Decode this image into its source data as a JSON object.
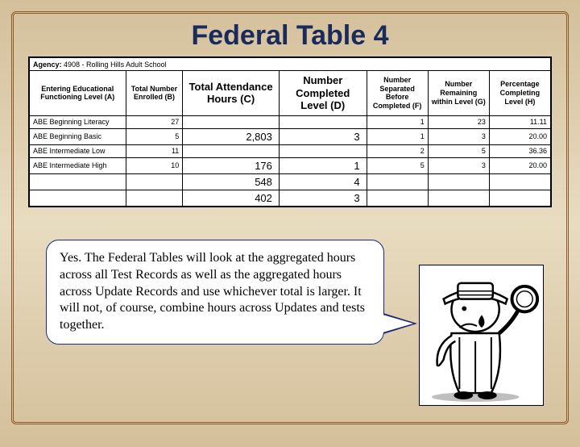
{
  "title": "Federal Table 4",
  "agency_label": "Agency:",
  "agency_value": "4908 - Rolling Hills Adult School",
  "columns": [
    "Entering Educational Functioning Level (A)",
    "Total Number Enrolled (B)",
    "Total Attendance Hours (C)",
    "Number Completed Level (D)",
    "Number Separated Before Completed (F)",
    "Number Remaining within Level (G)",
    "Percentage Completing Level (H)"
  ],
  "rows": [
    {
      "level": "ABE Beginning Literacy",
      "b": "27",
      "c": "",
      "d": "",
      "f": "1",
      "g": "23",
      "h": "11.11"
    },
    {
      "level": "ABE Beginning Basic",
      "b": "5",
      "c": "2,803",
      "d": "3",
      "f": "1",
      "g": "3",
      "h": "20.00"
    },
    {
      "level": "ABE Intermediate Low",
      "b": "11",
      "c": "",
      "d": "",
      "f": "2",
      "g": "5",
      "h": "36.36"
    },
    {
      "level": "ABE Intermediate High",
      "b": "10",
      "c": "176",
      "d": "1",
      "f": "5",
      "g": "3",
      "h": "20.00"
    },
    {
      "level": "",
      "b": "",
      "c": "548",
      "d": "4",
      "f": "",
      "g": "",
      "h": ""
    },
    {
      "level": "",
      "b": "",
      "c": "402",
      "d": "3",
      "f": "",
      "g": "",
      "h": ""
    }
  ],
  "callout_text": "Yes. The Federal Tables will look at the aggregated hours across all Test Records as well as the aggregated hours across Update Records and use whichever total is larger. It will not, of course, combine hours across Updates and tests together.",
  "colors": {
    "title": "#1a2a5a",
    "border": "#8b5a2b",
    "callout_border": "#1a2a7a",
    "bg_top": "#d4bf9a",
    "bg_mid": "#e8dcc0"
  }
}
